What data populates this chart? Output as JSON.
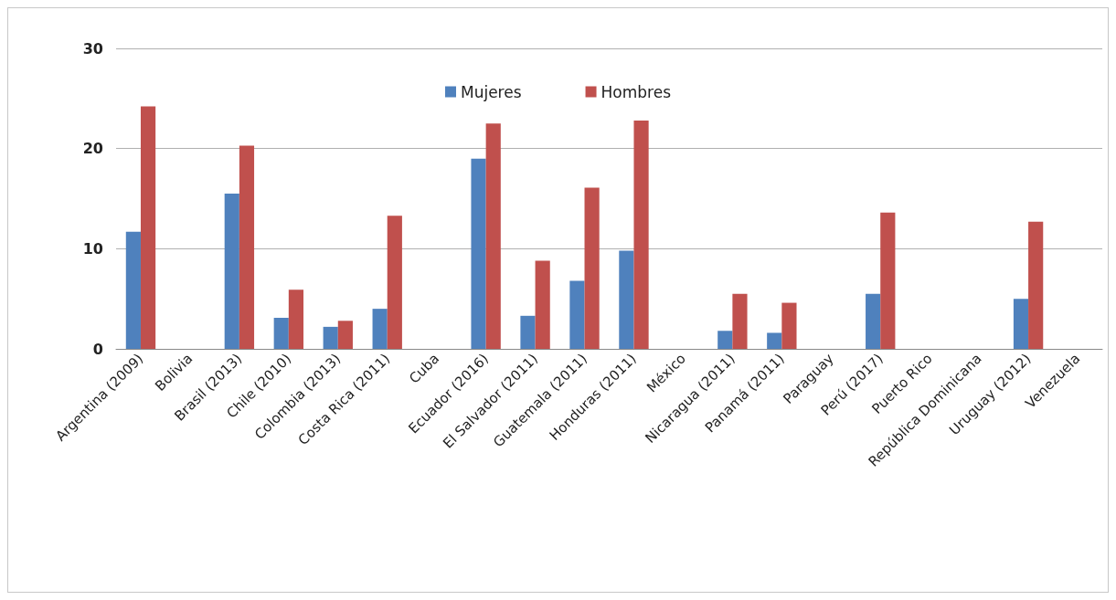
{
  "chart_data": {
    "type": "bar",
    "categories": [
      "Argentina (2009)",
      "Bolivia",
      "Brasil (2013)",
      "Chile (2010)",
      "Colombia (2013)",
      "Costa Rica (2011)",
      "Cuba",
      "Ecuador (2016)",
      "El Salvador (2011)",
      "Guatemala (2011)",
      "Honduras (2011)",
      "México",
      "Nicaragua (2011)",
      "Panamá (2011)",
      "Paraguay",
      "Perú (2017)",
      "Puerto Rico",
      "República Dominicana",
      "Uruguay (2012)",
      "Venezuela"
    ],
    "series": [
      {
        "name": "Mujeres",
        "color": "#4f81bd",
        "values": [
          11.7,
          null,
          15.5,
          3.1,
          2.2,
          4.0,
          null,
          19.0,
          3.3,
          6.8,
          9.8,
          null,
          1.8,
          1.6,
          null,
          5.5,
          null,
          null,
          5.0,
          null
        ]
      },
      {
        "name": "Hombres",
        "color": "#c0504d",
        "values": [
          24.2,
          null,
          20.3,
          5.9,
          2.8,
          13.3,
          null,
          22.5,
          8.8,
          16.1,
          22.8,
          null,
          5.5,
          4.6,
          null,
          13.6,
          null,
          null,
          12.7,
          null
        ]
      }
    ],
    "ylim": [
      0,
      30
    ],
    "yticks": [
      0,
      10,
      20,
      30
    ],
    "grid": "y",
    "legend": "top"
  }
}
